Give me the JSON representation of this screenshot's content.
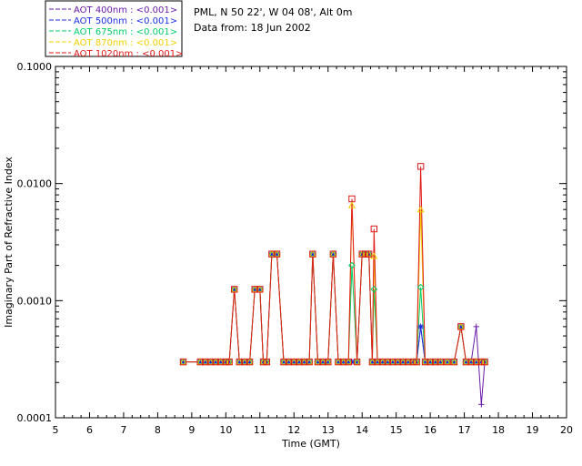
{
  "chart_data": {
    "type": "line",
    "title": "",
    "xlabel": "Time (GMT)",
    "ylabel": "Imaginary Part of Refractive Index",
    "xlim": [
      5,
      20
    ],
    "ylim": [
      0.0001,
      0.1
    ],
    "yscale": "log",
    "xticks": [
      5,
      6,
      7,
      8,
      9,
      10,
      11,
      12,
      13,
      14,
      15,
      16,
      17,
      18,
      19,
      20
    ],
    "xtick_labels": [
      "5",
      "6",
      "7",
      "8",
      "9",
      "10",
      "11",
      "12",
      "13",
      "14",
      "15",
      "16",
      "17",
      "18",
      "19",
      "20"
    ],
    "yticks": [
      0.0001,
      0.001,
      0.01,
      0.1
    ],
    "ytick_labels": [
      "0.0001",
      "0.0010",
      "0.0100",
      "0.1000"
    ],
    "info": {
      "site": "PML, N 50 22', W 04 08', Alt 0m",
      "date": "Data from: 18 Jun 2002"
    },
    "series": [
      {
        "name": "AOT  400nm : <0.001>",
        "color": "#6a1aa8",
        "marker": "plus",
        "x": [
          8.75,
          9.25,
          9.4,
          9.55,
          9.7,
          9.85,
          10.0,
          10.1,
          10.25,
          10.4,
          10.55,
          10.7,
          10.85,
          11.0,
          11.1,
          11.2,
          11.35,
          11.5,
          11.7,
          11.85,
          12.0,
          12.15,
          12.3,
          12.45,
          12.55,
          12.7,
          12.85,
          13.0,
          13.15,
          13.3,
          13.45,
          13.6,
          13.7,
          13.85,
          14.0,
          14.1,
          14.2,
          14.3,
          14.35,
          14.45,
          14.6,
          14.75,
          14.9,
          15.05,
          15.2,
          15.35,
          15.5,
          15.6,
          15.72,
          15.85,
          16.0,
          16.15,
          16.3,
          16.5,
          16.7,
          16.9,
          17.05,
          17.2,
          17.35,
          17.5,
          17.6
        ],
        "y": [
          0.0003,
          0.0003,
          0.0003,
          0.0003,
          0.0003,
          0.0003,
          0.0003,
          0.0003,
          0.00125,
          0.0003,
          0.0003,
          0.0003,
          0.00125,
          0.00125,
          0.0003,
          0.0003,
          0.0025,
          0.0025,
          0.0003,
          0.0003,
          0.0003,
          0.0003,
          0.0003,
          0.0003,
          0.0025,
          0.0003,
          0.0003,
          0.0003,
          0.0025,
          0.0003,
          0.0003,
          0.0003,
          0.0003,
          0.0003,
          0.0025,
          0.0025,
          0.0025,
          0.0003,
          0.0003,
          0.0003,
          0.0003,
          0.0003,
          0.0003,
          0.0003,
          0.0003,
          0.0003,
          0.0003,
          0.0003,
          0.0006,
          0.0003,
          0.0003,
          0.0003,
          0.0003,
          0.0003,
          0.0003,
          0.0006,
          0.0003,
          0.0003,
          0.0006,
          0.00013,
          0.0003
        ]
      },
      {
        "name": "AOT  500nm : <0.001>",
        "color": "#1a2ee6",
        "marker": "asterisk",
        "x": [
          8.75,
          9.25,
          9.4,
          9.55,
          9.7,
          9.85,
          10.0,
          10.1,
          10.25,
          10.4,
          10.55,
          10.7,
          10.85,
          11.0,
          11.1,
          11.2,
          11.35,
          11.5,
          11.7,
          11.85,
          12.0,
          12.15,
          12.3,
          12.45,
          12.55,
          12.7,
          12.85,
          13.0,
          13.15,
          13.3,
          13.45,
          13.6,
          13.7,
          13.85,
          14.0,
          14.1,
          14.2,
          14.3,
          14.35,
          14.45,
          14.6,
          14.75,
          14.9,
          15.05,
          15.2,
          15.35,
          15.5,
          15.6,
          15.72,
          15.85,
          16.0,
          16.15,
          16.3,
          16.5,
          16.7,
          16.9,
          17.05,
          17.2,
          17.35,
          17.5,
          17.6
        ],
        "y": [
          0.0003,
          0.0003,
          0.0003,
          0.0003,
          0.0003,
          0.0003,
          0.0003,
          0.0003,
          0.00125,
          0.0003,
          0.0003,
          0.0003,
          0.00125,
          0.00125,
          0.0003,
          0.0003,
          0.0025,
          0.0025,
          0.0003,
          0.0003,
          0.0003,
          0.0003,
          0.0003,
          0.0003,
          0.0025,
          0.0003,
          0.0003,
          0.0003,
          0.0025,
          0.0003,
          0.0003,
          0.0003,
          0.0003,
          0.0003,
          0.0025,
          0.0025,
          0.0025,
          0.0003,
          0.0003,
          0.0003,
          0.0003,
          0.0003,
          0.0003,
          0.0003,
          0.0003,
          0.0003,
          0.0003,
          0.0003,
          0.0006,
          0.0003,
          0.0003,
          0.0003,
          0.0003,
          0.0003,
          0.0003,
          0.0006,
          0.0003,
          0.0003,
          0.0003,
          0.0003,
          0.0003
        ]
      },
      {
        "name": "AOT  675nm : <0.001>",
        "color": "#00cc66",
        "marker": "diamond",
        "x": [
          8.75,
          9.25,
          9.4,
          9.55,
          9.7,
          9.85,
          10.0,
          10.1,
          10.25,
          10.4,
          10.55,
          10.7,
          10.85,
          11.0,
          11.1,
          11.2,
          11.35,
          11.5,
          11.7,
          11.85,
          12.0,
          12.15,
          12.3,
          12.45,
          12.55,
          12.7,
          12.85,
          13.0,
          13.15,
          13.3,
          13.45,
          13.6,
          13.7,
          13.85,
          14.0,
          14.1,
          14.2,
          14.3,
          14.35,
          14.45,
          14.6,
          14.75,
          14.9,
          15.05,
          15.2,
          15.35,
          15.5,
          15.6,
          15.72,
          15.85,
          16.0,
          16.15,
          16.3,
          16.5,
          16.7,
          16.9,
          17.05,
          17.2,
          17.35,
          17.5,
          17.6
        ],
        "y": [
          0.0003,
          0.0003,
          0.0003,
          0.0003,
          0.0003,
          0.0003,
          0.0003,
          0.0003,
          0.00125,
          0.0003,
          0.0003,
          0.0003,
          0.00125,
          0.00125,
          0.0003,
          0.0003,
          0.0025,
          0.0025,
          0.0003,
          0.0003,
          0.0003,
          0.0003,
          0.0003,
          0.0003,
          0.0025,
          0.0003,
          0.0003,
          0.0003,
          0.0025,
          0.0003,
          0.0003,
          0.0003,
          0.002,
          0.0003,
          0.0025,
          0.0025,
          0.0025,
          0.0003,
          0.00125,
          0.0003,
          0.0003,
          0.0003,
          0.0003,
          0.0003,
          0.0003,
          0.0003,
          0.0003,
          0.0003,
          0.0013,
          0.0003,
          0.0003,
          0.0003,
          0.0003,
          0.0003,
          0.0003,
          0.0006,
          0.0003,
          0.0003,
          0.0003,
          0.0003,
          0.0003
        ]
      },
      {
        "name": "AOT  870nm : <0.001>",
        "color": "#f0d000",
        "marker": "triangle",
        "x": [
          8.75,
          9.25,
          9.4,
          9.55,
          9.7,
          9.85,
          10.0,
          10.1,
          10.25,
          10.4,
          10.55,
          10.7,
          10.85,
          11.0,
          11.1,
          11.2,
          11.35,
          11.5,
          11.7,
          11.85,
          12.0,
          12.15,
          12.3,
          12.45,
          12.55,
          12.7,
          12.85,
          13.0,
          13.15,
          13.3,
          13.45,
          13.6,
          13.7,
          13.85,
          14.0,
          14.1,
          14.2,
          14.3,
          14.35,
          14.45,
          14.6,
          14.75,
          14.9,
          15.05,
          15.2,
          15.35,
          15.5,
          15.6,
          15.72,
          15.85,
          16.0,
          16.15,
          16.3,
          16.5,
          16.7,
          16.9,
          17.05,
          17.2,
          17.35,
          17.5,
          17.6
        ],
        "y": [
          0.0003,
          0.0003,
          0.0003,
          0.0003,
          0.0003,
          0.0003,
          0.0003,
          0.0003,
          0.00125,
          0.0003,
          0.0003,
          0.0003,
          0.00125,
          0.00125,
          0.0003,
          0.0003,
          0.0025,
          0.0025,
          0.0003,
          0.0003,
          0.0003,
          0.0003,
          0.0003,
          0.0003,
          0.0025,
          0.0003,
          0.0003,
          0.0003,
          0.0025,
          0.0003,
          0.0003,
          0.0003,
          0.0065,
          0.0003,
          0.0025,
          0.0025,
          0.0025,
          0.0003,
          0.0024,
          0.0003,
          0.0003,
          0.0003,
          0.0003,
          0.0003,
          0.0003,
          0.0003,
          0.0003,
          0.0003,
          0.006,
          0.0003,
          0.0003,
          0.0003,
          0.0003,
          0.0003,
          0.0003,
          0.0006,
          0.0003,
          0.0003,
          0.0003,
          0.0003,
          0.0003
        ]
      },
      {
        "name": "AOT 1020nm : <0.001>",
        "color": "#e01818",
        "marker": "square",
        "x": [
          8.75,
          9.25,
          9.4,
          9.55,
          9.7,
          9.85,
          10.0,
          10.1,
          10.25,
          10.4,
          10.55,
          10.7,
          10.85,
          11.0,
          11.1,
          11.2,
          11.35,
          11.5,
          11.7,
          11.85,
          12.0,
          12.15,
          12.3,
          12.45,
          12.55,
          12.7,
          12.85,
          13.0,
          13.15,
          13.3,
          13.45,
          13.6,
          13.7,
          13.85,
          14.0,
          14.1,
          14.2,
          14.3,
          14.35,
          14.45,
          14.6,
          14.75,
          14.9,
          15.05,
          15.2,
          15.35,
          15.5,
          15.6,
          15.72,
          15.85,
          16.0,
          16.15,
          16.3,
          16.5,
          16.7,
          16.9,
          17.05,
          17.2,
          17.35,
          17.5,
          17.6
        ],
        "y": [
          0.0003,
          0.0003,
          0.0003,
          0.0003,
          0.0003,
          0.0003,
          0.0003,
          0.0003,
          0.00125,
          0.0003,
          0.0003,
          0.0003,
          0.00125,
          0.00125,
          0.0003,
          0.0003,
          0.0025,
          0.0025,
          0.0003,
          0.0003,
          0.0003,
          0.0003,
          0.0003,
          0.0003,
          0.0025,
          0.0003,
          0.0003,
          0.0003,
          0.0025,
          0.0003,
          0.0003,
          0.0003,
          0.0074,
          0.0003,
          0.0025,
          0.0025,
          0.0025,
          0.0003,
          0.0041,
          0.0003,
          0.0003,
          0.0003,
          0.0003,
          0.0003,
          0.0003,
          0.0003,
          0.0003,
          0.0003,
          0.014,
          0.0003,
          0.0003,
          0.0003,
          0.0003,
          0.0003,
          0.0003,
          0.0006,
          0.0003,
          0.0003,
          0.0003,
          0.0003,
          0.0003
        ]
      }
    ]
  }
}
